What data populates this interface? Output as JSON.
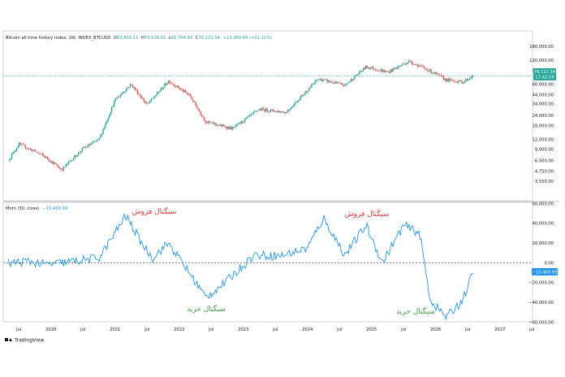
{
  "header": {
    "title": "Bitcoin all time history index, 1W, INDEX_BTCUSD",
    "o_label": "O",
    "o_value": "62,850.11",
    "h_label": "H",
    "h_value": "79,518.02",
    "l_label": "L",
    "l_value": "62,704.93",
    "c_label": "C",
    "c_value": "76,121.54",
    "change": "+13,269.43 (+21.11%)"
  },
  "price_badge": {
    "value": "76,121.54",
    "time": "17:42:59"
  },
  "mom_badge": {
    "value": "−10,469.99"
  },
  "indicator": {
    "title": "Mom (30, close)",
    "value": "−10,469.99"
  },
  "annotations": {
    "sell_1": "سیگنال فروش",
    "sell_2": "سیگنال فروش",
    "buy_1": "سیگنال خرید",
    "buy_2": "سیگنال خرید"
  },
  "footer": {
    "brand": "TradingView"
  },
  "colors": {
    "up": "#26a69a",
    "down": "#ef5350",
    "momentum": "#2196f3",
    "sell_text": "#e53935",
    "buy_text": "#43a047",
    "badge": "#26a69a",
    "mom_badge": "#2196f3"
  },
  "chart_data": [
    {
      "type": "candlestick",
      "title": "Bitcoin all time history index, 1W, INDEX_BTCUSD",
      "y_scale": "log",
      "y_ticks": [
        "180,000.00",
        "120,000.00",
        "90,000.00",
        "60,000.00",
        "44,000.00",
        "34,000.00",
        "24,000.00",
        "18,000.00",
        "12,000.00",
        "9,000.00",
        "6,500.00",
        "4,750.00",
        "3,550.00"
      ],
      "x_ticks": [
        "Jul",
        "2020",
        "Jul",
        "2021",
        "Jul",
        "2022",
        "Jul",
        "2023",
        "Jul",
        "2024",
        "Jul",
        "2025",
        "Jul",
        "2026",
        "Jul",
        "2027",
        "Jul"
      ],
      "approx_close_path": [
        {
          "x": "2019-05",
          "y": 6500
        },
        {
          "x": "2019-07",
          "y": 10500
        },
        {
          "x": "2019-10",
          "y": 8500
        },
        {
          "x": "2019-12",
          "y": 7200
        },
        {
          "x": "2020-03",
          "y": 5000
        },
        {
          "x": "2020-07",
          "y": 9200
        },
        {
          "x": "2020-10",
          "y": 12000
        },
        {
          "x": "2021-01",
          "y": 38000
        },
        {
          "x": "2021-04",
          "y": 60000
        },
        {
          "x": "2021-07",
          "y": 33000
        },
        {
          "x": "2021-11",
          "y": 66000
        },
        {
          "x": "2022-03",
          "y": 43000
        },
        {
          "x": "2022-06",
          "y": 20000
        },
        {
          "x": "2022-11",
          "y": 16500
        },
        {
          "x": "2023-04",
          "y": 29000
        },
        {
          "x": "2023-09",
          "y": 26500
        },
        {
          "x": "2024-03",
          "y": 70000
        },
        {
          "x": "2024-08",
          "y": 58000
        },
        {
          "x": "2024-12",
          "y": 100000
        },
        {
          "x": "2025-04",
          "y": 85000
        },
        {
          "x": "2025-08",
          "y": 117000
        },
        {
          "x": "2025-12",
          "y": 88000
        },
        {
          "x": "2026-03",
          "y": 68000
        },
        {
          "x": "2026-06",
          "y": 64000
        },
        {
          "x": "2026-08",
          "y": 76121.54
        }
      ],
      "last_price": 76121.54
    },
    {
      "type": "line",
      "title": "Mom (30, close)",
      "y_ticks": [
        "60,000.00",
        "40,000.00",
        "20,000.00",
        "0.00",
        "−20,000.00",
        "−40,000.00",
        "−60,000.00"
      ],
      "zero_line": "dashed",
      "approx_series": [
        {
          "x": "2019-05",
          "y": 0
        },
        {
          "x": "2019-09",
          "y": 1500
        },
        {
          "x": "2019-12",
          "y": -2000
        },
        {
          "x": "2020-05",
          "y": 1500
        },
        {
          "x": "2020-10",
          "y": 5000
        },
        {
          "x": "2021-01",
          "y": 30000
        },
        {
          "x": "2021-03",
          "y": 48000
        },
        {
          "x": "2021-06",
          "y": 20000
        },
        {
          "x": "2021-08",
          "y": 5000
        },
        {
          "x": "2021-11",
          "y": 20000
        },
        {
          "x": "2022-02",
          "y": -3000
        },
        {
          "x": "2022-06",
          "y": -35000
        },
        {
          "x": "2022-10",
          "y": -18000
        },
        {
          "x": "2023-03",
          "y": 8000
        },
        {
          "x": "2023-08",
          "y": 7000
        },
        {
          "x": "2024-01",
          "y": 15000
        },
        {
          "x": "2024-04",
          "y": 45000
        },
        {
          "x": "2024-08",
          "y": 8000
        },
        {
          "x": "2024-12",
          "y": 38000
        },
        {
          "x": "2025-03",
          "y": 0
        },
        {
          "x": "2025-07",
          "y": 38000
        },
        {
          "x": "2025-10",
          "y": 30000
        },
        {
          "x": "2025-12",
          "y": -38000
        },
        {
          "x": "2026-03",
          "y": -55000
        },
        {
          "x": "2026-06",
          "y": -38000
        },
        {
          "x": "2026-08",
          "y": -10469.99
        }
      ],
      "last_value": -10469.99
    }
  ]
}
